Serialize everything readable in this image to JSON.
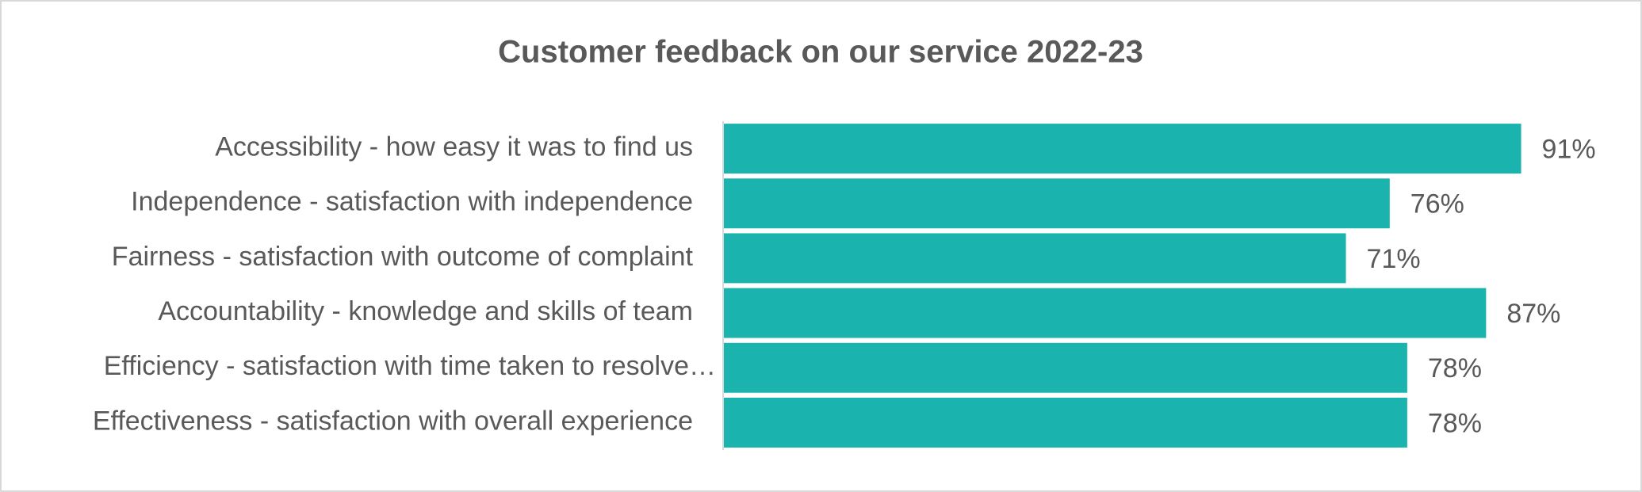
{
  "chart_data": {
    "type": "hbar",
    "title": "Customer feedback on our service 2022-23",
    "categories": [
      "Accessibility - how easy it was to find us",
      "Independence - satisfaction with independence",
      "Fairness - satisfaction with outcome of complaint",
      "Accountability - knowledge and skills of team",
      "Efficiency - satisfaction with time taken to resolve…",
      "Effectiveness - satisfaction with overall experience"
    ],
    "values": [
      91,
      76,
      71,
      87,
      78,
      78
    ],
    "value_labels": [
      "91%",
      "76%",
      "71%",
      "87%",
      "78%",
      "78%"
    ],
    "color": "#1bb3ae",
    "xlim": [
      0,
      100
    ]
  }
}
